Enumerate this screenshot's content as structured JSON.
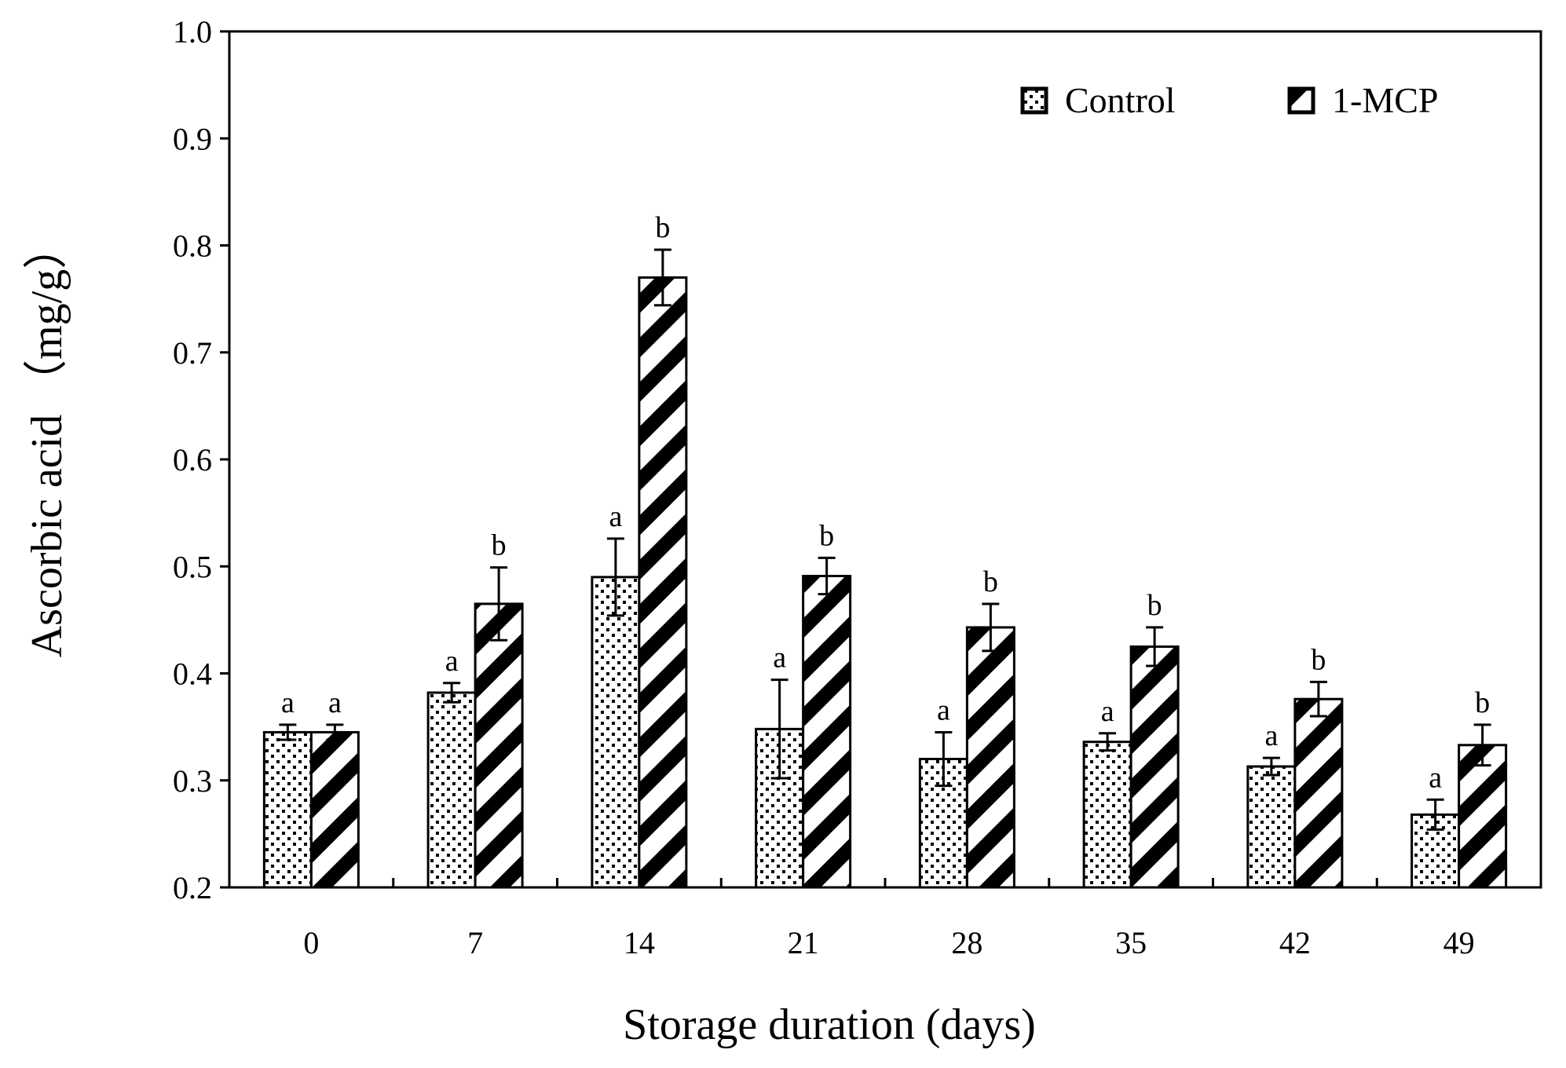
{
  "chart_data": {
    "type": "bar",
    "title": "",
    "xlabel": "Storage duration (days)",
    "ylabel": "Ascorbic acid （mg/g）",
    "categories": [
      "0",
      "7",
      "14",
      "21",
      "28",
      "35",
      "42",
      "49"
    ],
    "ylim": [
      0.2,
      1.0
    ],
    "yticks": [
      "0.2",
      "0.3",
      "0.4",
      "0.5",
      "0.6",
      "0.7",
      "0.8",
      "0.9",
      "1.0"
    ],
    "grid": false,
    "legend_position": "top-right",
    "series": [
      {
        "name": "Control",
        "pattern": "dots",
        "values": [
          0.345,
          0.382,
          0.49,
          0.348,
          0.32,
          0.336,
          0.313,
          0.268
        ],
        "errors": [
          0.007,
          0.009,
          0.036,
          0.046,
          0.025,
          0.008,
          0.008,
          0.014
        ],
        "significance": [
          "a",
          "a",
          "a",
          "a",
          "a",
          "a",
          "a",
          "a"
        ]
      },
      {
        "name": "1-MCP",
        "pattern": "diagonal-stripes",
        "values": [
          0.345,
          0.465,
          0.77,
          0.491,
          0.443,
          0.425,
          0.376,
          0.333
        ],
        "errors": [
          0.007,
          0.034,
          0.026,
          0.017,
          0.022,
          0.018,
          0.016,
          0.019
        ],
        "significance": [
          "a",
          "b",
          "b",
          "b",
          "b",
          "b",
          "b",
          "b"
        ]
      }
    ]
  }
}
